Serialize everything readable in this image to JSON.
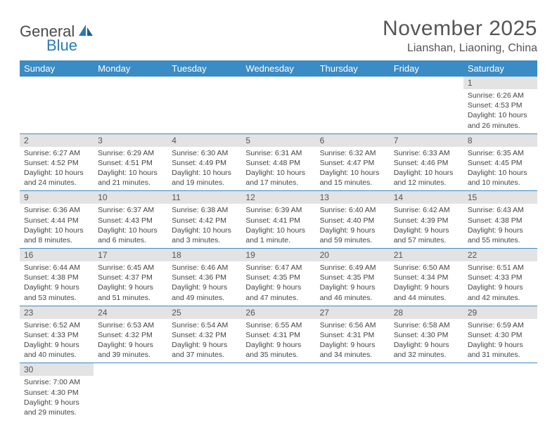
{
  "logo": {
    "part1": "General",
    "part2": "Blue"
  },
  "title": "November 2025",
  "location": "Lianshan, Liaoning, China",
  "daynames": [
    "Sunday",
    "Monday",
    "Tuesday",
    "Wednesday",
    "Thursday",
    "Friday",
    "Saturday"
  ],
  "colors": {
    "header_bg": "#3b8bc4",
    "header_text": "#ffffff",
    "daynum_bg": "#e3e3e3",
    "border": "#3b8bc4",
    "text": "#444444",
    "logo_gray": "#4a4a4a",
    "logo_blue": "#2a7ab8"
  },
  "fonts": {
    "title_size": 30,
    "location_size": 16,
    "dayname_size": 13,
    "cell_size": 10.5
  },
  "first_weekday": 6,
  "days": [
    {
      "n": 1,
      "sunrise": "6:26 AM",
      "sunset": "4:53 PM",
      "daylight": "10 hours and 26 minutes."
    },
    {
      "n": 2,
      "sunrise": "6:27 AM",
      "sunset": "4:52 PM",
      "daylight": "10 hours and 24 minutes."
    },
    {
      "n": 3,
      "sunrise": "6:29 AM",
      "sunset": "4:51 PM",
      "daylight": "10 hours and 21 minutes."
    },
    {
      "n": 4,
      "sunrise": "6:30 AM",
      "sunset": "4:49 PM",
      "daylight": "10 hours and 19 minutes."
    },
    {
      "n": 5,
      "sunrise": "6:31 AM",
      "sunset": "4:48 PM",
      "daylight": "10 hours and 17 minutes."
    },
    {
      "n": 6,
      "sunrise": "6:32 AM",
      "sunset": "4:47 PM",
      "daylight": "10 hours and 15 minutes."
    },
    {
      "n": 7,
      "sunrise": "6:33 AM",
      "sunset": "4:46 PM",
      "daylight": "10 hours and 12 minutes."
    },
    {
      "n": 8,
      "sunrise": "6:35 AM",
      "sunset": "4:45 PM",
      "daylight": "10 hours and 10 minutes."
    },
    {
      "n": 9,
      "sunrise": "6:36 AM",
      "sunset": "4:44 PM",
      "daylight": "10 hours and 8 minutes."
    },
    {
      "n": 10,
      "sunrise": "6:37 AM",
      "sunset": "4:43 PM",
      "daylight": "10 hours and 6 minutes."
    },
    {
      "n": 11,
      "sunrise": "6:38 AM",
      "sunset": "4:42 PM",
      "daylight": "10 hours and 3 minutes."
    },
    {
      "n": 12,
      "sunrise": "6:39 AM",
      "sunset": "4:41 PM",
      "daylight": "10 hours and 1 minute."
    },
    {
      "n": 13,
      "sunrise": "6:40 AM",
      "sunset": "4:40 PM",
      "daylight": "9 hours and 59 minutes."
    },
    {
      "n": 14,
      "sunrise": "6:42 AM",
      "sunset": "4:39 PM",
      "daylight": "9 hours and 57 minutes."
    },
    {
      "n": 15,
      "sunrise": "6:43 AM",
      "sunset": "4:38 PM",
      "daylight": "9 hours and 55 minutes."
    },
    {
      "n": 16,
      "sunrise": "6:44 AM",
      "sunset": "4:38 PM",
      "daylight": "9 hours and 53 minutes."
    },
    {
      "n": 17,
      "sunrise": "6:45 AM",
      "sunset": "4:37 PM",
      "daylight": "9 hours and 51 minutes."
    },
    {
      "n": 18,
      "sunrise": "6:46 AM",
      "sunset": "4:36 PM",
      "daylight": "9 hours and 49 minutes."
    },
    {
      "n": 19,
      "sunrise": "6:47 AM",
      "sunset": "4:35 PM",
      "daylight": "9 hours and 47 minutes."
    },
    {
      "n": 20,
      "sunrise": "6:49 AM",
      "sunset": "4:35 PM",
      "daylight": "9 hours and 46 minutes."
    },
    {
      "n": 21,
      "sunrise": "6:50 AM",
      "sunset": "4:34 PM",
      "daylight": "9 hours and 44 minutes."
    },
    {
      "n": 22,
      "sunrise": "6:51 AM",
      "sunset": "4:33 PM",
      "daylight": "9 hours and 42 minutes."
    },
    {
      "n": 23,
      "sunrise": "6:52 AM",
      "sunset": "4:33 PM",
      "daylight": "9 hours and 40 minutes."
    },
    {
      "n": 24,
      "sunrise": "6:53 AM",
      "sunset": "4:32 PM",
      "daylight": "9 hours and 39 minutes."
    },
    {
      "n": 25,
      "sunrise": "6:54 AM",
      "sunset": "4:32 PM",
      "daylight": "9 hours and 37 minutes."
    },
    {
      "n": 26,
      "sunrise": "6:55 AM",
      "sunset": "4:31 PM",
      "daylight": "9 hours and 35 minutes."
    },
    {
      "n": 27,
      "sunrise": "6:56 AM",
      "sunset": "4:31 PM",
      "daylight": "9 hours and 34 minutes."
    },
    {
      "n": 28,
      "sunrise": "6:58 AM",
      "sunset": "4:30 PM",
      "daylight": "9 hours and 32 minutes."
    },
    {
      "n": 29,
      "sunrise": "6:59 AM",
      "sunset": "4:30 PM",
      "daylight": "9 hours and 31 minutes."
    },
    {
      "n": 30,
      "sunrise": "7:00 AM",
      "sunset": "4:30 PM",
      "daylight": "9 hours and 29 minutes."
    }
  ],
  "labels": {
    "sunrise": "Sunrise:",
    "sunset": "Sunset:",
    "daylight": "Daylight:"
  }
}
